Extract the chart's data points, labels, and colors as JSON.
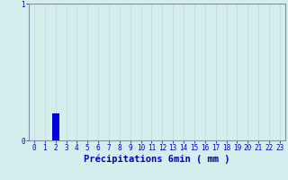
{
  "title": "",
  "xlabel": "Précipitations 6min ( mm )",
  "ylabel": "",
  "bg_color": "#d4eeed",
  "bar_color": "#0000dd",
  "bar_index": 2,
  "num_bars": 24,
  "bar_height": 0.2,
  "ylim": [
    0,
    1.0
  ],
  "yticks": [
    0,
    1
  ],
  "xticks": [
    0,
    1,
    2,
    3,
    4,
    5,
    6,
    7,
    8,
    9,
    10,
    11,
    12,
    13,
    14,
    15,
    16,
    17,
    18,
    19,
    20,
    21,
    22,
    23
  ],
  "grid_color_h": "#e8a0a0",
  "grid_color_v": "#c0d8d8",
  "axis_color": "#8090a0",
  "tick_color": "#0000bb",
  "label_color": "#0000bb",
  "tick_fontsize": 5.5,
  "label_fontsize": 7.5
}
